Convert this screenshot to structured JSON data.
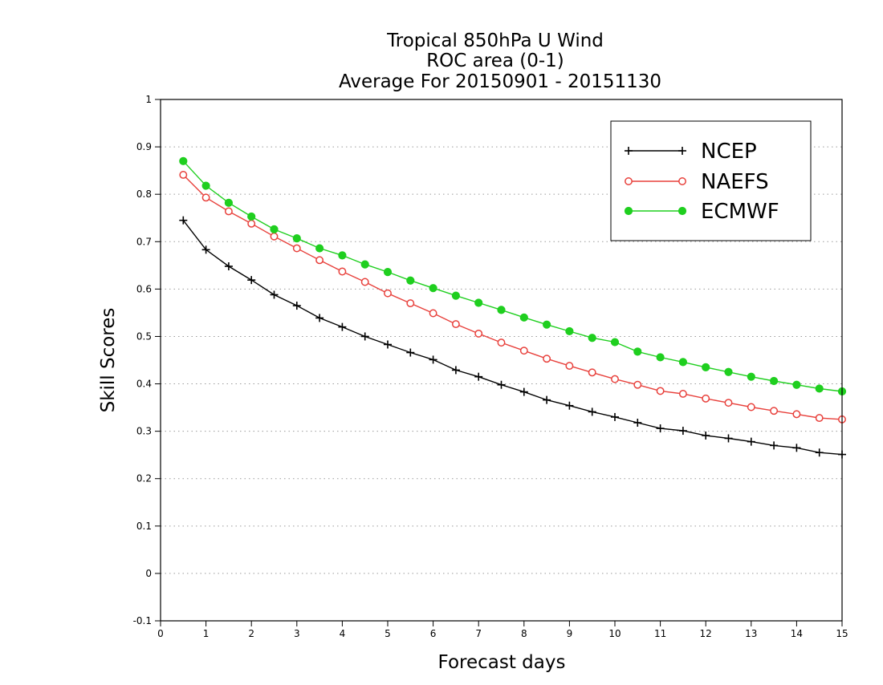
{
  "chart_data": {
    "type": "line",
    "title": [
      "Tropical 850hPa U Wind",
      "ROC area (0-1)",
      "Average For 20150901 - 20151130"
    ],
    "xlabel": "Forecast days",
    "ylabel": "Skill Scores",
    "xlim": [
      0,
      15
    ],
    "ylim": [
      -0.1,
      1
    ],
    "xticks": [
      0,
      1,
      2,
      3,
      4,
      5,
      6,
      7,
      8,
      9,
      10,
      11,
      12,
      13,
      14,
      15
    ],
    "yticks": [
      -0.1,
      0,
      0.1,
      0.2,
      0.3,
      0.4,
      0.5,
      0.6,
      0.7,
      0.8,
      0.9,
      1
    ],
    "ytick_labels": [
      "-0.1",
      "0",
      "0.1",
      "0.2",
      "0.3",
      "0.4",
      "0.5",
      "0.6",
      "0.7",
      "0.8",
      "0.9",
      "1"
    ],
    "grid": true,
    "legend_position": "top-right",
    "x": [
      0.5,
      1,
      1.5,
      2,
      2.5,
      3,
      3.5,
      4,
      4.5,
      5,
      5.5,
      6,
      6.5,
      7,
      7.5,
      8,
      8.5,
      9,
      9.5,
      10,
      10.5,
      11,
      11.5,
      12,
      12.5,
      13,
      13.5,
      14,
      14.5,
      15
    ],
    "series": [
      {
        "name": "NCEP",
        "color": "#000000",
        "marker": "plus",
        "values": [
          0.745,
          0.683,
          0.648,
          0.619,
          0.588,
          0.565,
          0.539,
          0.52,
          0.5,
          0.483,
          0.466,
          0.451,
          0.429,
          0.415,
          0.398,
          0.383,
          0.366,
          0.354,
          0.341,
          0.33,
          0.318,
          0.306,
          0.301,
          0.291,
          0.285,
          0.278,
          0.27,
          0.265,
          0.255,
          0.251
        ]
      },
      {
        "name": "NAEFS",
        "color": "#e8413c",
        "marker": "open-circle",
        "values": [
          0.841,
          0.793,
          0.764,
          0.738,
          0.711,
          0.686,
          0.661,
          0.637,
          0.615,
          0.591,
          0.57,
          0.549,
          0.526,
          0.506,
          0.487,
          0.47,
          0.453,
          0.438,
          0.424,
          0.41,
          0.398,
          0.385,
          0.379,
          0.369,
          0.36,
          0.351,
          0.343,
          0.336,
          0.328,
          0.325
        ]
      },
      {
        "name": "ECMWF",
        "color": "#1fcf1f",
        "marker": "filled-circle",
        "values": [
          0.87,
          0.818,
          0.782,
          0.753,
          0.726,
          0.707,
          0.686,
          0.671,
          0.652,
          0.636,
          0.618,
          0.602,
          0.586,
          0.571,
          0.556,
          0.54,
          0.525,
          0.511,
          0.497,
          0.488,
          0.468,
          0.456,
          0.446,
          0.435,
          0.425,
          0.415,
          0.406,
          0.398,
          0.39,
          0.384
        ]
      }
    ]
  }
}
